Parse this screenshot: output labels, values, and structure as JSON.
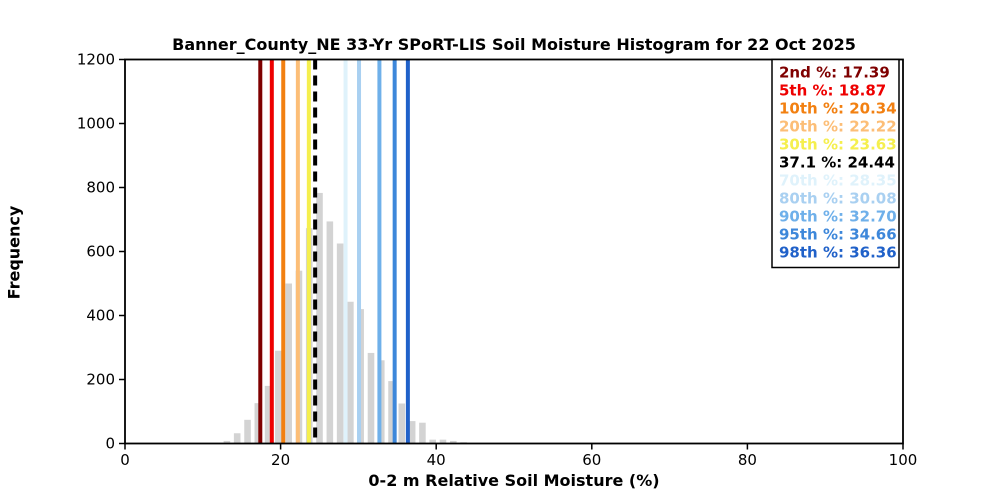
{
  "chart_data": {
    "type": "bar",
    "title": "Banner_County_NE 33-Yr SPoRT-LIS Soil Moisture Histogram for 22 Oct 2025",
    "xlabel": "0-2 m Relative Soil Moisture (%)",
    "ylabel": "Frequency",
    "xlim": [
      0,
      100
    ],
    "ylim": [
      0,
      1200
    ],
    "x_ticks": [
      0,
      20,
      40,
      60,
      80,
      100
    ],
    "y_ticks": [
      0,
      200,
      400,
      600,
      800,
      1000,
      1200
    ],
    "grid": false,
    "bar_color": "#d3d3d3",
    "bin_width": 1.32,
    "bins": {
      "centers": [
        13.1,
        14.42,
        15.75,
        17.07,
        18.39,
        19.71,
        21.04,
        22.36,
        23.68,
        25.0,
        26.33,
        27.65,
        28.97,
        30.29,
        31.62,
        32.94,
        34.26,
        35.58,
        36.91,
        38.23,
        39.55,
        40.87,
        42.2,
        43.52
      ],
      "frequencies": [
        8,
        32,
        74,
        126,
        180,
        290,
        500,
        540,
        673,
        783,
        694,
        625,
        443,
        420,
        283,
        260,
        195,
        125,
        70,
        65,
        12,
        12,
        8,
        4
      ]
    },
    "percentile_lines": [
      {
        "label": "2nd %",
        "value": "17.39",
        "color": "#7f0000",
        "dashed": false
      },
      {
        "label": "5th %",
        "value": "18.87",
        "color": "#ee0000",
        "dashed": false
      },
      {
        "label": "10th %",
        "value": "20.34",
        "color": "#f28011",
        "dashed": false
      },
      {
        "label": "20th %",
        "value": "22.22",
        "color": "#fcbe77",
        "dashed": false
      },
      {
        "label": "30th %",
        "value": "23.63",
        "color": "#f5ef4e",
        "dashed": false
      },
      {
        "label": "37.1 %",
        "value": "24.44",
        "color": "#000000",
        "dashed": true
      },
      {
        "label": "70th %",
        "value": "28.35",
        "color": "#dff2fb",
        "dashed": false
      },
      {
        "label": "80th %",
        "value": "30.08",
        "color": "#a9d0f1",
        "dashed": false
      },
      {
        "label": "90th %",
        "value": "32.70",
        "color": "#6fb0ea",
        "dashed": false
      },
      {
        "label": "95th %",
        "value": "34.66",
        "color": "#3d87da",
        "dashed": false
      },
      {
        "label": "98th %",
        "value": "36.36",
        "color": "#2061c9",
        "dashed": false
      }
    ],
    "legend": {
      "position": "upper right",
      "separator": ": "
    }
  }
}
